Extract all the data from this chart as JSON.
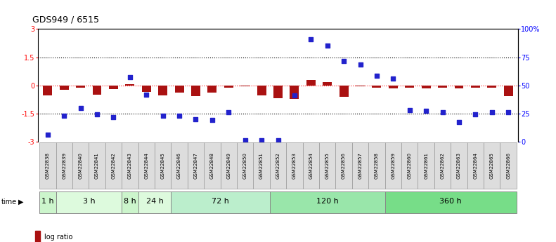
{
  "title": "GDS949 / 6515",
  "samples": [
    "GSM22838",
    "GSM22839",
    "GSM22840",
    "GSM22841",
    "GSM22842",
    "GSM22843",
    "GSM22844",
    "GSM22845",
    "GSM22846",
    "GSM22847",
    "GSM22848",
    "GSM22849",
    "GSM22850",
    "GSM22851",
    "GSM22852",
    "GSM22853",
    "GSM22854",
    "GSM22855",
    "GSM22856",
    "GSM22857",
    "GSM22858",
    "GSM22859",
    "GSM22860",
    "GSM22861",
    "GSM22862",
    "GSM22863",
    "GSM22864",
    "GSM22865",
    "GSM22866"
  ],
  "log_ratio": [
    -0.55,
    -0.25,
    -0.12,
    -0.5,
    -0.2,
    0.05,
    -0.35,
    -0.55,
    -0.38,
    -0.58,
    -0.38,
    -0.12,
    -0.05,
    -0.52,
    -0.68,
    -0.72,
    0.28,
    0.18,
    -0.62,
    -0.05,
    -0.12,
    -0.15,
    -0.12,
    -0.18,
    -0.12,
    -0.18,
    -0.12,
    -0.12,
    -0.58
  ],
  "pct_rank_left": [
    -2.62,
    -1.62,
    -1.2,
    -1.55,
    -1.7,
    0.45,
    -0.5,
    -1.62,
    -1.62,
    -1.82,
    -1.85,
    -1.42,
    -2.95,
    -2.95,
    -2.95,
    -0.55,
    2.45,
    2.1,
    1.3,
    1.1,
    0.5,
    0.35,
    -1.32,
    -1.35,
    -1.45,
    -1.95,
    -1.55,
    -1.42,
    -1.42
  ],
  "time_groups": [
    {
      "label": "1 h",
      "start": 0,
      "end": 1,
      "color": "#ccf5cc"
    },
    {
      "label": "3 h",
      "start": 1,
      "end": 5,
      "color": "#ddfadd"
    },
    {
      "label": "8 h",
      "start": 5,
      "end": 6,
      "color": "#ccf5cc"
    },
    {
      "label": "24 h",
      "start": 6,
      "end": 8,
      "color": "#ddfadd"
    },
    {
      "label": "72 h",
      "start": 8,
      "end": 14,
      "color": "#bbeecc"
    },
    {
      "label": "120 h",
      "start": 14,
      "end": 21,
      "color": "#99e6aa"
    },
    {
      "label": "360 h",
      "start": 21,
      "end": 29,
      "color": "#77dd88"
    }
  ],
  "bar_color": "#aa1111",
  "dot_color": "#2222cc",
  "yticks_left": [
    -3,
    -1.5,
    0,
    1.5,
    3
  ],
  "ytick_labels_left": [
    "-3",
    "-1.5",
    "0",
    "1.5",
    "3"
  ],
  "yticks_right": [
    0,
    25,
    50,
    75,
    100
  ],
  "ytick_labels_right": [
    "0",
    "25",
    "50",
    "75",
    "100%"
  ],
  "dotted_hlines": [
    -1.5,
    1.5
  ],
  "red_hline": 0.0,
  "title_fontsize": 9,
  "tick_fontsize": 7,
  "sample_fontsize": 5.0,
  "time_fontsize": 8,
  "legend_fontsize": 7,
  "sample_box_color": "#dddddd",
  "sample_box_edge": "#999999"
}
